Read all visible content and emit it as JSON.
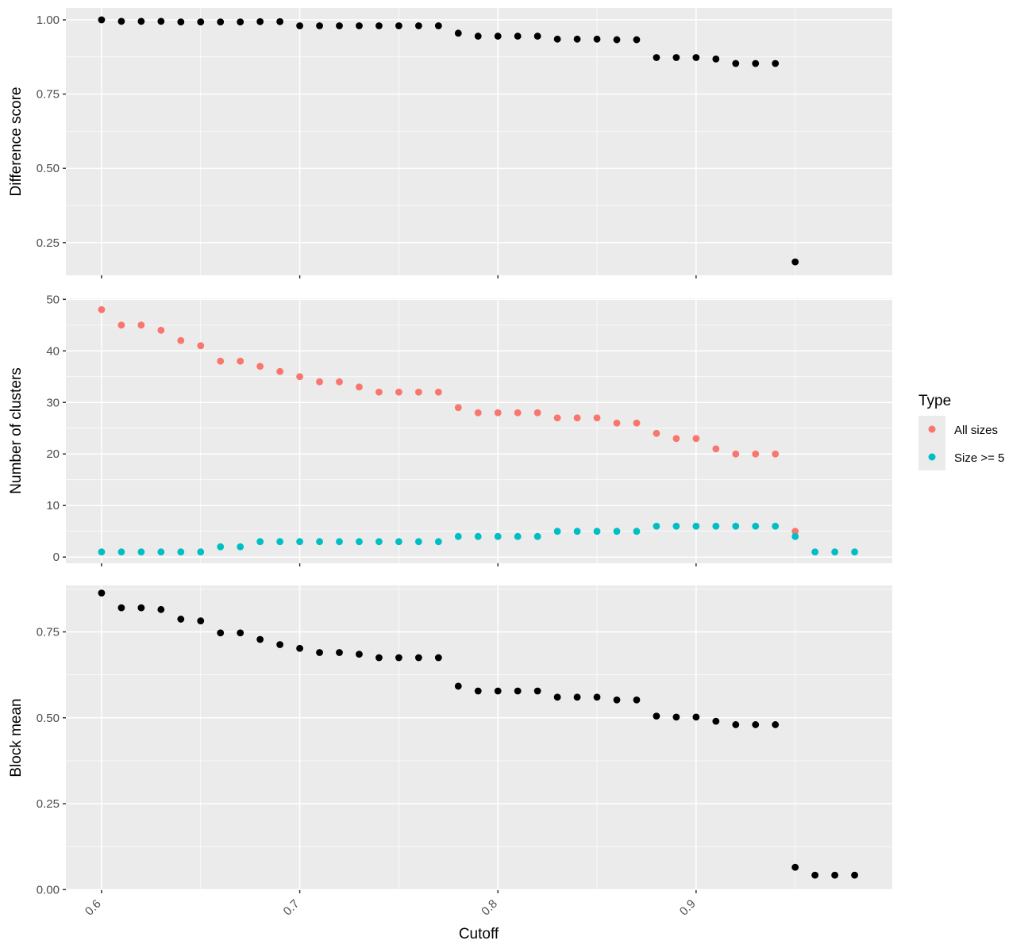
{
  "chart_data": {
    "type": "scatter",
    "xlabel": "Cutoff",
    "x_ticks": [
      0.6,
      0.7,
      0.8,
      0.9
    ],
    "xlim": [
      0.582,
      0.999
    ],
    "colors": {
      "black": "#000000",
      "All sizes": "#F8766D",
      "Size >= 5": "#00BFC4"
    },
    "legend": {
      "title": "Type",
      "placement": "right",
      "entries": [
        {
          "label": "All sizes",
          "color": "#F8766D"
        },
        {
          "label": "Size >= 5",
          "color": "#00BFC4"
        }
      ]
    },
    "panels": [
      {
        "name": "difference-score",
        "ylabel": "Difference score",
        "ylim": [
          0.14,
          1.04
        ],
        "y_ticks": [
          {
            "value": 0.25,
            "label": "0.25"
          },
          {
            "value": 0.5,
            "label": "0.50"
          },
          {
            "value": 0.75,
            "label": "0.75"
          },
          {
            "value": 1.0,
            "label": "1.00"
          }
        ],
        "series": [
          {
            "color": "#000000",
            "x": [
              0.6,
              0.61,
              0.62,
              0.63,
              0.64,
              0.65,
              0.66,
              0.67,
              0.68,
              0.69,
              0.7,
              0.71,
              0.72,
              0.73,
              0.74,
              0.75,
              0.76,
              0.77,
              0.78,
              0.79,
              0.8,
              0.81,
              0.82,
              0.83,
              0.84,
              0.85,
              0.86,
              0.87,
              0.88,
              0.89,
              0.9,
              0.91,
              0.92,
              0.93,
              0.94,
              0.95
            ],
            "y": [
              1.0,
              0.995,
              0.995,
              0.995,
              0.993,
              0.993,
              0.993,
              0.993,
              0.994,
              0.994,
              0.98,
              0.98,
              0.98,
              0.98,
              0.98,
              0.98,
              0.98,
              0.98,
              0.955,
              0.945,
              0.945,
              0.945,
              0.945,
              0.935,
              0.935,
              0.935,
              0.933,
              0.933,
              0.873,
              0.873,
              0.873,
              0.868,
              0.853,
              0.853,
              0.853,
              0.185
            ]
          }
        ]
      },
      {
        "name": "number-of-clusters",
        "ylabel": "Number of clusters",
        "ylim": [
          -1.2,
          50.2
        ],
        "y_ticks": [
          {
            "value": 0,
            "label": "0"
          },
          {
            "value": 10,
            "label": "10"
          },
          {
            "value": 20,
            "label": "20"
          },
          {
            "value": 30,
            "label": "30"
          },
          {
            "value": 40,
            "label": "40"
          },
          {
            "value": 50,
            "label": "50"
          }
        ],
        "series": [
          {
            "name": "All sizes",
            "color": "#F8766D",
            "x": [
              0.6,
              0.61,
              0.62,
              0.63,
              0.64,
              0.65,
              0.66,
              0.67,
              0.68,
              0.69,
              0.7,
              0.71,
              0.72,
              0.73,
              0.74,
              0.75,
              0.76,
              0.77,
              0.78,
              0.79,
              0.8,
              0.81,
              0.82,
              0.83,
              0.84,
              0.85,
              0.86,
              0.87,
              0.88,
              0.89,
              0.9,
              0.91,
              0.92,
              0.93,
              0.94,
              0.95
            ],
            "y": [
              48,
              45,
              45,
              44,
              42,
              41,
              38,
              38,
              37,
              36,
              35,
              34,
              34,
              33,
              32,
              32,
              32,
              32,
              29,
              28,
              28,
              28,
              28,
              27,
              27,
              27,
              26,
              26,
              24,
              23,
              23,
              21,
              20,
              20,
              20,
              5
            ]
          },
          {
            "name": "Size >= 5",
            "color": "#00BFC4",
            "x": [
              0.6,
              0.61,
              0.62,
              0.63,
              0.64,
              0.65,
              0.66,
              0.67,
              0.68,
              0.69,
              0.7,
              0.71,
              0.72,
              0.73,
              0.74,
              0.75,
              0.76,
              0.77,
              0.78,
              0.79,
              0.8,
              0.81,
              0.82,
              0.83,
              0.84,
              0.85,
              0.86,
              0.87,
              0.88,
              0.89,
              0.9,
              0.91,
              0.92,
              0.93,
              0.94,
              0.95,
              0.96,
              0.97,
              0.98
            ],
            "y": [
              1,
              1,
              1,
              1,
              1,
              1,
              2,
              2,
              3,
              3,
              3,
              3,
              3,
              3,
              3,
              3,
              3,
              3,
              4,
              4,
              4,
              4,
              4,
              5,
              5,
              5,
              5,
              5,
              6,
              6,
              6,
              6,
              6,
              6,
              6,
              4,
              1,
              1,
              1
            ]
          }
        ]
      },
      {
        "name": "block-mean",
        "ylabel": "Block mean",
        "ylim": [
          -0.0015,
          0.885
        ],
        "y_ticks": [
          {
            "value": 0.0,
            "label": "0.00"
          },
          {
            "value": 0.25,
            "label": "0.25"
          },
          {
            "value": 0.5,
            "label": "0.50"
          },
          {
            "value": 0.75,
            "label": "0.75"
          }
        ],
        "series": [
          {
            "color": "#000000",
            "x": [
              0.6,
              0.61,
              0.62,
              0.63,
              0.64,
              0.65,
              0.66,
              0.67,
              0.68,
              0.69,
              0.7,
              0.71,
              0.72,
              0.73,
              0.74,
              0.75,
              0.76,
              0.77,
              0.78,
              0.79,
              0.8,
              0.81,
              0.82,
              0.83,
              0.84,
              0.85,
              0.86,
              0.87,
              0.88,
              0.89,
              0.9,
              0.91,
              0.92,
              0.93,
              0.94,
              0.95,
              0.96,
              0.97,
              0.98
            ],
            "y": [
              0.863,
              0.82,
              0.82,
              0.815,
              0.787,
              0.782,
              0.747,
              0.747,
              0.728,
              0.713,
              0.702,
              0.69,
              0.69,
              0.685,
              0.675,
              0.675,
              0.675,
              0.675,
              0.592,
              0.578,
              0.578,
              0.578,
              0.578,
              0.56,
              0.56,
              0.56,
              0.552,
              0.552,
              0.505,
              0.502,
              0.502,
              0.49,
              0.48,
              0.48,
              0.48,
              0.065,
              0.042,
              0.042,
              0.042
            ]
          }
        ]
      }
    ]
  }
}
